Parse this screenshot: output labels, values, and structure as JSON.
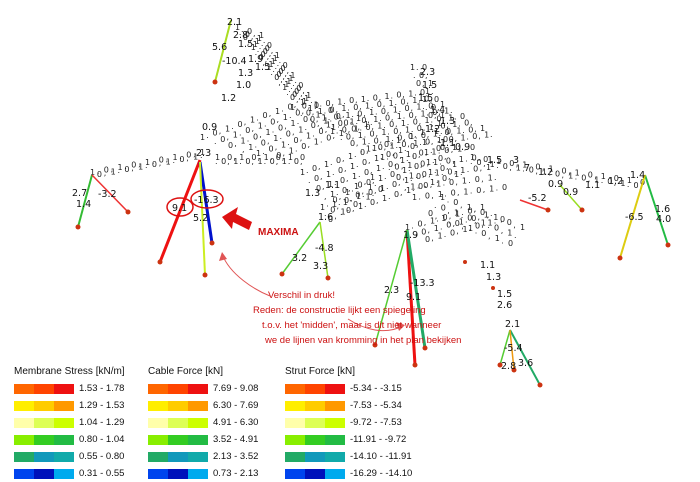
{
  "membrane_legend": {
    "title": "Membrane Stress [kN/m]",
    "rows": [
      {
        "range": "1.53 - 1.78",
        "colors": [
          "#ff6600",
          "#ff4400",
          "#ee1111"
        ]
      },
      {
        "range": "1.29 - 1.53",
        "colors": [
          "#ffee00",
          "#ffcc00",
          "#ff9900"
        ]
      },
      {
        "range": "1.04 - 1.29",
        "colors": [
          "#ffffaa",
          "#ddff55",
          "#ccff00"
        ]
      },
      {
        "range": "0.80 - 1.04",
        "colors": [
          "#88ee00",
          "#33cc22",
          "#22bb44"
        ]
      },
      {
        "range": "0.55 - 0.80",
        "colors": [
          "#22aa66",
          "#1199bb",
          "#11aaaa"
        ]
      },
      {
        "range": "0.31 - 0.55",
        "colors": [
          "#0044ee",
          "#0011bb",
          "#00aaee"
        ]
      }
    ]
  },
  "cable_legend": {
    "title": "Cable Force [kN]",
    "rows": [
      {
        "range": "7.69 - 9.08",
        "colors": [
          "#ff6600",
          "#ff4400",
          "#ee1111"
        ]
      },
      {
        "range": "6.30 - 7.69",
        "colors": [
          "#ffee00",
          "#ffcc00",
          "#ff9900"
        ]
      },
      {
        "range": "4.91 - 6.30",
        "colors": [
          "#ffffaa",
          "#ddff55",
          "#ccff00"
        ]
      },
      {
        "range": "3.52 - 4.91",
        "colors": [
          "#88ee00",
          "#33cc22",
          "#22bb44"
        ]
      },
      {
        "range": "2.13 - 3.52",
        "colors": [
          "#22aa66",
          "#1199bb",
          "#11aaaa"
        ]
      },
      {
        "range": "0.73 - 2.13",
        "colors": [
          "#0044ee",
          "#0011bb",
          "#00aaee"
        ]
      }
    ]
  },
  "strut_legend": {
    "title": "Strut Force [kN]",
    "rows": [
      {
        "range": "-5.34 - -3.15",
        "colors": [
          "#ff6600",
          "#ff4400",
          "#ee1111"
        ]
      },
      {
        "range": "-7.53 - -5.34",
        "colors": [
          "#ffee00",
          "#ffcc00",
          "#ff9900"
        ]
      },
      {
        "range": "-9.72 - -7.53",
        "colors": [
          "#ffffaa",
          "#ddff55",
          "#ccff00"
        ]
      },
      {
        "range": "-11.91 - -9.72",
        "colors": [
          "#88ee00",
          "#33cc22",
          "#22bb44"
        ]
      },
      {
        "range": "-14.10 - -11.91",
        "colors": [
          "#22aa66",
          "#1199bb",
          "#11aaaa"
        ]
      },
      {
        "range": "-16.29 - -14.10",
        "colors": [
          "#0044ee",
          "#0011bb",
          "#00aaee"
        ]
      }
    ]
  },
  "annotation": {
    "maxima": "MAXIMA",
    "lines": [
      "Verschil in druk!",
      "Reden: de constructie lijkt een spiegeling",
      "t.o.v. het 'midden', maar is dit niet wanneer",
      "we de lijnen van kromming in het plan bekijken"
    ],
    "circled_values": [
      "9.1",
      "-16.3"
    ]
  },
  "member_labels": [
    "2.1",
    "2.8",
    "1.5",
    "5.6",
    "-10.4",
    "1.9",
    "1.5",
    "1.3",
    "1.0",
    "1.2",
    "0.9",
    "2.3",
    "1.5",
    "1.5",
    "1.4",
    "1.3",
    "1.2",
    "1.1",
    "0.9",
    "2.3",
    "1.3",
    "1.1",
    "2.7",
    "-3.2",
    "1.4",
    "5.2",
    "1.6",
    "-4.8",
    "3.2",
    "3.3",
    "1.5",
    "3",
    "7",
    "1.2",
    "0.9",
    "-5.2",
    "0.9",
    "1.1",
    "1.2",
    "1.4",
    "-6.5",
    "1.6",
    "4.0",
    "1.9",
    "-13.3",
    "9.1",
    "2.3",
    "1.1",
    "1.3",
    "1.5",
    "2.6",
    "2.1",
    "-5.4",
    "2.8",
    "3.6"
  ]
}
